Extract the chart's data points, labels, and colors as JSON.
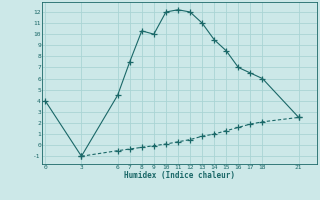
{
  "bg_color": "#cce8e8",
  "grid_color": "#aad4d4",
  "line_color": "#1a6868",
  "xlabel": "Humidex (Indice chaleur)",
  "upper_x": [
    0,
    3,
    6,
    7,
    8,
    9,
    10,
    11,
    12,
    13,
    14,
    15,
    16,
    17,
    18,
    21
  ],
  "upper_y": [
    4,
    -1,
    4.5,
    7.5,
    10.3,
    10.0,
    12.0,
    12.2,
    12.0,
    11.0,
    9.5,
    8.5,
    7.0,
    6.5,
    6.0,
    2.5
  ],
  "lower_x": [
    3,
    6,
    7,
    8,
    9,
    10,
    11,
    12,
    13,
    14,
    15,
    16,
    17,
    18,
    21
  ],
  "lower_y": [
    -1.0,
    -0.5,
    -0.35,
    -0.2,
    -0.05,
    0.1,
    0.3,
    0.5,
    0.8,
    1.0,
    1.3,
    1.6,
    1.9,
    2.1,
    2.5
  ],
  "xticks": [
    0,
    3,
    6,
    7,
    8,
    9,
    10,
    11,
    12,
    13,
    14,
    15,
    16,
    17,
    18,
    21
  ],
  "yticks": [
    -1,
    0,
    1,
    2,
    3,
    4,
    5,
    6,
    7,
    8,
    9,
    10,
    11,
    12
  ],
  "xlim": [
    -0.3,
    22.5
  ],
  "ylim": [
    -1.7,
    12.9
  ]
}
